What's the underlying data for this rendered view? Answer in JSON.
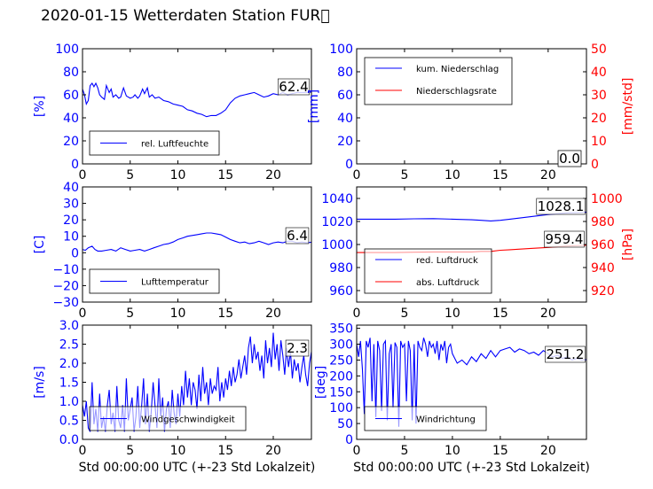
{
  "page": {
    "title": "2020-01-15 Wetterdaten Station FUR\u0000"
  },
  "colors": {
    "left_axis": "#0000ff",
    "right_axis": "#ff0000",
    "series_blue": "#0000ff",
    "series_red": "#ff0000"
  },
  "x_axis_label": "Std 00:00:00 UTC (+-23 Std Lokalzeit)",
  "chart_data": [
    {
      "id": "humidity",
      "type": "line",
      "x_range": [
        0,
        24
      ],
      "x_ticks": [
        "0",
        "5",
        "10",
        "15",
        "20"
      ],
      "y_range": [
        0,
        100
      ],
      "y_ticks": [
        "0",
        "20",
        "40",
        "60",
        "80",
        "100"
      ],
      "ylabel": "[%]",
      "legend": "rel. Luftfeuchte",
      "last_value": "62.4",
      "series": [
        {
          "name": "rel. Luftfeuchte",
          "color": "blue",
          "x": [
            0,
            0.2,
            0.4,
            0.6,
            0.8,
            1,
            1.2,
            1.4,
            1.6,
            1.8,
            2,
            2.3,
            2.5,
            2.8,
            3,
            3.2,
            3.5,
            3.8,
            4,
            4.3,
            4.6,
            5,
            5.3,
            5.5,
            5.8,
            6,
            6.3,
            6.5,
            6.8,
            7,
            7.3,
            7.6,
            8,
            8.5,
            9,
            9.5,
            10,
            10.5,
            11,
            11.5,
            12,
            12.5,
            13,
            13.5,
            14,
            14.5,
            15,
            15.5,
            16,
            16.5,
            17,
            17.5,
            18,
            18.5,
            19,
            19.5,
            20,
            20.5,
            21,
            21.5,
            22,
            22.5,
            23,
            23.5,
            24
          ],
          "y": [
            65,
            60,
            52,
            55,
            68,
            70,
            67,
            70,
            66,
            60,
            58,
            56,
            68,
            62,
            65,
            58,
            60,
            57,
            58,
            66,
            59,
            57,
            58,
            60,
            57,
            59,
            65,
            61,
            66,
            58,
            60,
            57,
            58,
            55,
            54,
            52,
            51,
            50,
            47,
            46,
            44,
            43,
            41,
            42,
            42,
            44,
            47,
            53,
            57,
            59,
            60,
            61,
            62,
            60,
            58,
            59,
            61,
            60,
            62,
            60,
            61,
            62,
            62,
            62,
            62.4
          ]
        }
      ]
    },
    {
      "id": "precipitation",
      "type": "line",
      "x_range": [
        0,
        24
      ],
      "x_ticks": [
        "0",
        "5",
        "10",
        "15",
        "20"
      ],
      "y_range": [
        0,
        100
      ],
      "y_ticks": [
        "0",
        "20",
        "40",
        "60",
        "80",
        "100"
      ],
      "y2_range": [
        0,
        50
      ],
      "y2_ticks": [
        "0",
        "10",
        "20",
        "30",
        "40",
        "50"
      ],
      "ylabel": "[mm]",
      "y2label": "[mm/std]",
      "legend": [
        "kum. Niederschlag",
        "Niederschlagsrate"
      ],
      "last_values": [
        "0.0",
        "0.0"
      ],
      "series": [
        {
          "name": "kum. Niederschlag",
          "color": "blue",
          "axis": "left",
          "x": [
            0,
            24
          ],
          "y": [
            0,
            0
          ]
        },
        {
          "name": "Niederschlagsrate",
          "color": "red",
          "axis": "right",
          "x": [
            0,
            24
          ],
          "y": [
            0,
            0
          ]
        }
      ]
    },
    {
      "id": "temperature",
      "type": "line",
      "x_range": [
        0,
        24
      ],
      "x_ticks": [
        "0",
        "5",
        "10",
        "15",
        "20"
      ],
      "y_range": [
        -30,
        40
      ],
      "y_ticks": [
        "−30",
        "−20",
        "−10",
        "0",
        "10",
        "20",
        "30",
        "40"
      ],
      "ylabel": "[C]",
      "legend": "Lufttemperatur",
      "last_value": "6.4",
      "series": [
        {
          "name": "Lufttemperatur",
          "color": "blue",
          "x": [
            0,
            0.3,
            0.6,
            1,
            1.3,
            1.6,
            2,
            2.5,
            3,
            3.5,
            4,
            4.5,
            5,
            5.5,
            6,
            6.5,
            7,
            7.5,
            8,
            8.5,
            9,
            9.5,
            10,
            10.5,
            11,
            11.5,
            12,
            12.5,
            13,
            13.5,
            14,
            14.5,
            15,
            15.5,
            16,
            16.5,
            17,
            17.5,
            18,
            18.5,
            19,
            19.5,
            20,
            20.5,
            21,
            21.5,
            22,
            22.5,
            23,
            23.5,
            24
          ],
          "y": [
            2,
            1.5,
            3,
            4,
            2,
            1,
            1,
            1.5,
            2,
            1,
            3,
            2,
            1,
            1.5,
            2,
            1,
            2,
            3,
            4,
            5,
            5.5,
            6.5,
            8,
            9,
            10,
            10.5,
            11,
            11.5,
            12,
            12,
            11.5,
            11,
            9.5,
            8,
            7,
            6,
            6.5,
            5.5,
            6,
            7,
            6,
            5,
            6,
            6.5,
            6,
            7,
            7,
            6,
            6.5,
            6,
            6.4
          ]
        }
      ]
    },
    {
      "id": "pressure",
      "type": "line",
      "x_range": [
        0,
        24
      ],
      "x_ticks": [
        "0",
        "5",
        "10",
        "15",
        "20"
      ],
      "y_range": [
        950,
        1050
      ],
      "y_ticks": [
        "960",
        "980",
        "1000",
        "1020",
        "1040"
      ],
      "y2_range": [
        910,
        1010
      ],
      "y2_ticks": [
        "920",
        "940",
        "960",
        "980",
        "1000"
      ],
      "ylabel": "",
      "y2label": "[hPa]",
      "legend": [
        "red. Luftdruck",
        "abs. Luftdruck"
      ],
      "last_values": [
        "1028.1",
        "959.4"
      ],
      "series": [
        {
          "name": "red. Luftdruck",
          "color": "blue",
          "axis": "left",
          "x": [
            0,
            2,
            4,
            6,
            8,
            10,
            12,
            13,
            14,
            15,
            16,
            18,
            20,
            22,
            24
          ],
          "y": [
            1022,
            1022,
            1022,
            1022.3,
            1022.5,
            1022,
            1021.5,
            1021,
            1020.5,
            1021,
            1022,
            1024,
            1026,
            1027.5,
            1028.1
          ]
        },
        {
          "name": "abs. Luftdruck",
          "color": "red",
          "axis": "right",
          "x": [
            0,
            2,
            4,
            6,
            8,
            10,
            12,
            13,
            14,
            15,
            16,
            18,
            20,
            22,
            24
          ],
          "y": [
            953,
            953,
            953,
            953.3,
            953.5,
            953.5,
            953.5,
            954,
            954,
            955,
            955.5,
            956.5,
            957.5,
            958.7,
            959.4
          ]
        }
      ]
    },
    {
      "id": "wind_speed",
      "type": "line",
      "x_range": [
        0,
        24
      ],
      "x_ticks": [
        "0",
        "5",
        "10",
        "15",
        "20"
      ],
      "y_range": [
        0,
        3
      ],
      "y_ticks": [
        "0.0",
        "0.5",
        "1.0",
        "1.5",
        "2.0",
        "2.5",
        "3.0"
      ],
      "ylabel": "[m/s]",
      "legend": "Windgeschwindigkeit",
      "last_value": "2.3",
      "series": [
        {
          "name": "Windgeschwindigkeit",
          "color": "blue",
          "x": [
            0,
            0.2,
            0.4,
            0.6,
            0.8,
            1,
            1.2,
            1.4,
            1.6,
            1.8,
            2,
            2.2,
            2.4,
            2.6,
            2.8,
            3,
            3.2,
            3.4,
            3.6,
            3.8,
            4,
            4.2,
            4.4,
            4.6,
            4.8,
            5,
            5.2,
            5.4,
            5.6,
            5.8,
            6,
            6.2,
            6.4,
            6.6,
            6.8,
            7,
            7.2,
            7.4,
            7.6,
            7.8,
            8,
            8.2,
            8.4,
            8.6,
            8.8,
            9,
            9.2,
            9.4,
            9.6,
            9.8,
            10,
            10.2,
            10.4,
            10.6,
            10.8,
            11,
            11.2,
            11.4,
            11.6,
            11.8,
            12,
            12.2,
            12.4,
            12.6,
            12.8,
            13,
            13.2,
            13.4,
            13.6,
            13.8,
            14,
            14.2,
            14.4,
            14.6,
            14.8,
            15,
            15.2,
            15.4,
            15.6,
            15.8,
            16,
            16.2,
            16.4,
            16.6,
            16.8,
            17,
            17.2,
            17.4,
            17.6,
            17.8,
            18,
            18.2,
            18.4,
            18.6,
            18.8,
            19,
            19.2,
            19.4,
            19.6,
            19.8,
            20,
            20.2,
            20.4,
            20.6,
            20.8,
            21,
            21.2,
            21.4,
            21.6,
            21.8,
            22,
            22.2,
            22.4,
            22.6,
            22.8,
            23,
            23.2,
            23.4,
            23.6,
            23.8,
            24
          ],
          "y": [
            0.9,
            0.6,
            1.0,
            0.3,
            0.2,
            1.5,
            0.4,
            0.8,
            0.2,
            1.2,
            0.3,
            0.6,
            0.2,
            0.9,
            1.3,
            0.4,
            0.7,
            0.2,
            1.4,
            0.5,
            0.3,
            0.9,
            0.2,
            1.6,
            0.5,
            0.8,
            1.1,
            0.2,
            0.6,
            1.4,
            0.3,
            0.9,
            1.6,
            0.4,
            1.2,
            0.2,
            0.7,
            1.5,
            0.9,
            0.3,
            1.6,
            0.6,
            1.1,
            0.2,
            0.8,
            1.0,
            0.3,
            1.3,
            0.7,
            0.4,
            1.2,
            0.6,
            1.4,
            0.9,
            1.8,
            1.1,
            1.6,
            0.9,
            1.5,
            1.3,
            0.8,
            1.7,
            1.0,
            1.9,
            1.2,
            1.5,
            0.9,
            1.6,
            1.2,
            1.4,
            1.3,
            1.9,
            1.0,
            1.5,
            1.1,
            1.6,
            1.3,
            1.8,
            1.4,
            1.9,
            1.5,
            1.7,
            2.1,
            1.6,
            1.9,
            2.2,
            1.7,
            2.4,
            2.7,
            2.0,
            2.5,
            2.1,
            2.3,
            1.8,
            2.2,
            1.6,
            2.6,
            2.0,
            2.4,
            1.9,
            2.8,
            2.1,
            2.5,
            1.8,
            2.6,
            2.2,
            1.7,
            2.4,
            1.9,
            2.3,
            1.6,
            2.1,
            1.8,
            2.0,
            1.5,
            1.9,
            2.2,
            1.7,
            1.4,
            2.0,
            2.3
          ]
        }
      ]
    },
    {
      "id": "wind_direction",
      "type": "line",
      "x_range": [
        0,
        24
      ],
      "x_ticks": [
        "0",
        "5",
        "10",
        "15",
        "20"
      ],
      "y_range": [
        0,
        360
      ],
      "y_ticks": [
        "0",
        "50",
        "100",
        "150",
        "200",
        "250",
        "300",
        "350"
      ],
      "ylabel": "[deg]",
      "legend": "Windrichtung",
      "last_value": "251.2",
      "series": [
        {
          "name": "Windrichtung",
          "color": "blue",
          "x": [
            0,
            0.2,
            0.4,
            0.6,
            0.8,
            1,
            1.2,
            1.4,
            1.6,
            1.8,
            2,
            2.2,
            2.4,
            2.6,
            2.8,
            3,
            3.2,
            3.4,
            3.6,
            3.8,
            4,
            4.2,
            4.4,
            4.6,
            4.8,
            5,
            5.2,
            5.4,
            5.6,
            5.8,
            6,
            6.2,
            6.4,
            6.6,
            6.8,
            7,
            7.2,
            7.4,
            7.6,
            7.8,
            8,
            8.2,
            8.4,
            8.6,
            8.8,
            9,
            9.2,
            9.4,
            9.6,
            9.8,
            10,
            10.5,
            11,
            11.5,
            12,
            12.5,
            13,
            13.5,
            14,
            14.5,
            15,
            15.5,
            16,
            16.5,
            17,
            17.5,
            18,
            18.5,
            19,
            19.5,
            20,
            20.5,
            21,
            21.5,
            22,
            22.5,
            23,
            23.5,
            24
          ],
          "y": [
            300,
            260,
            310,
            220,
            80,
            310,
            290,
            320,
            120,
            300,
            70,
            310,
            280,
            90,
            300,
            310,
            60,
            270,
            300,
            100,
            305,
            290,
            40,
            310,
            290,
            300,
            120,
            310,
            280,
            60,
            300,
            50,
            310,
            290,
            280,
            320,
            300,
            260,
            310,
            290,
            300,
            270,
            310,
            250,
            300,
            280,
            310,
            240,
            290,
            300,
            270,
            240,
            250,
            235,
            260,
            245,
            270,
            255,
            280,
            260,
            280,
            285,
            290,
            275,
            285,
            280,
            270,
            275,
            265,
            280,
            270,
            260,
            265,
            255,
            260,
            250,
            255,
            250,
            251.2
          ]
        }
      ]
    }
  ]
}
